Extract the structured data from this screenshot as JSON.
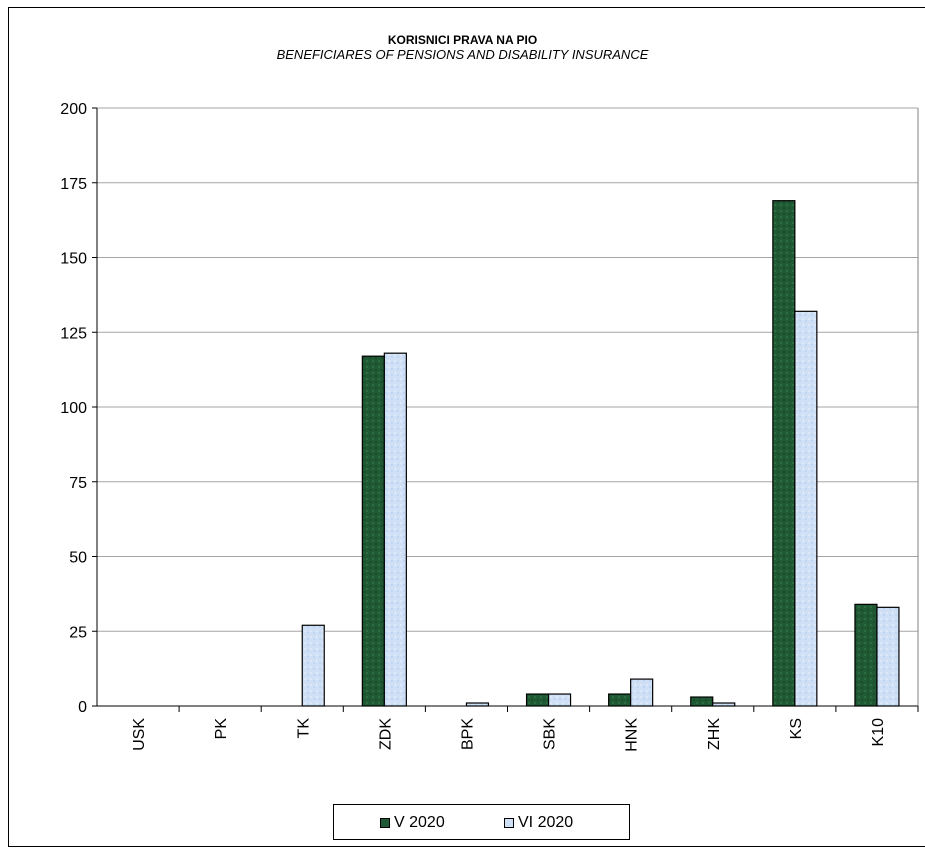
{
  "chart_data": {
    "type": "bar",
    "title": "KORISNICI PRAVA NA PIO",
    "subtitle": "BENEFICIARES OF PENSIONS AND DISABILITY INSURANCE",
    "categories": [
      "USK",
      "PK",
      "TK",
      "ZDK",
      "BPK",
      "SBK",
      "HNK",
      "ZHK",
      "KS",
      "K10"
    ],
    "series": [
      {
        "name": "V 2020",
        "values": [
          0,
          0,
          0,
          117,
          0,
          4,
          4,
          3,
          169,
          34
        ],
        "color": "#1f5a34"
      },
      {
        "name": "VI 2020",
        "values": [
          0,
          0,
          27,
          118,
          1,
          4,
          9,
          1,
          132,
          33
        ],
        "color": "#cfe0f6"
      }
    ],
    "ylim": [
      0,
      200
    ],
    "yticks": [
      0,
      25,
      50,
      75,
      100,
      125,
      150,
      175,
      200
    ],
    "grid": true,
    "legend_position": "bottom"
  }
}
